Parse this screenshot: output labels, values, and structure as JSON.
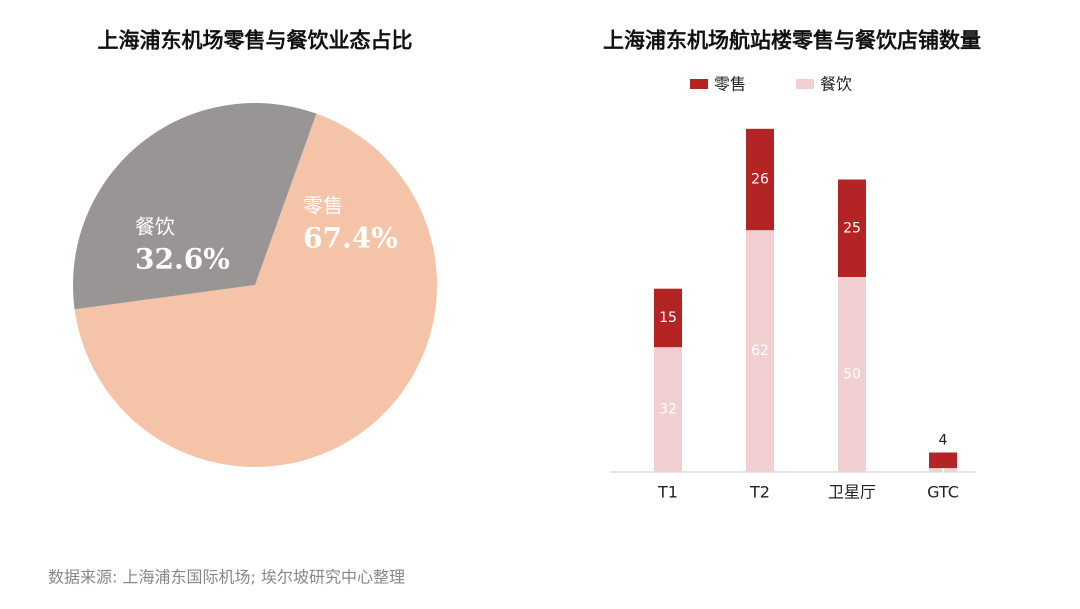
{
  "chart_data": [
    {
      "type": "pie",
      "title": "上海浦东机场零售与餐饮业态占比",
      "categories": [
        "零售",
        "餐饮"
      ],
      "values": [
        67.4,
        32.6
      ],
      "value_labels": [
        "67.4%",
        "32.6%"
      ],
      "colors": [
        "#f5c4a8",
        "#9a9595"
      ]
    },
    {
      "type": "bar",
      "stacked": true,
      "title": "上海浦东机场航站楼零售与餐饮店铺数量",
      "categories": [
        "T1",
        "T2",
        "卫星厅",
        "GTC"
      ],
      "series": [
        {
          "name": "餐饮",
          "color": "#f2d0d2",
          "values": [
            32,
            62,
            50,
            1
          ]
        },
        {
          "name": "零售",
          "color": "#b42425",
          "values": [
            15,
            26,
            25,
            4
          ]
        }
      ]
    }
  ],
  "source": "数据来源: 上海浦东国际机场; 埃尔坡研究中心整理"
}
